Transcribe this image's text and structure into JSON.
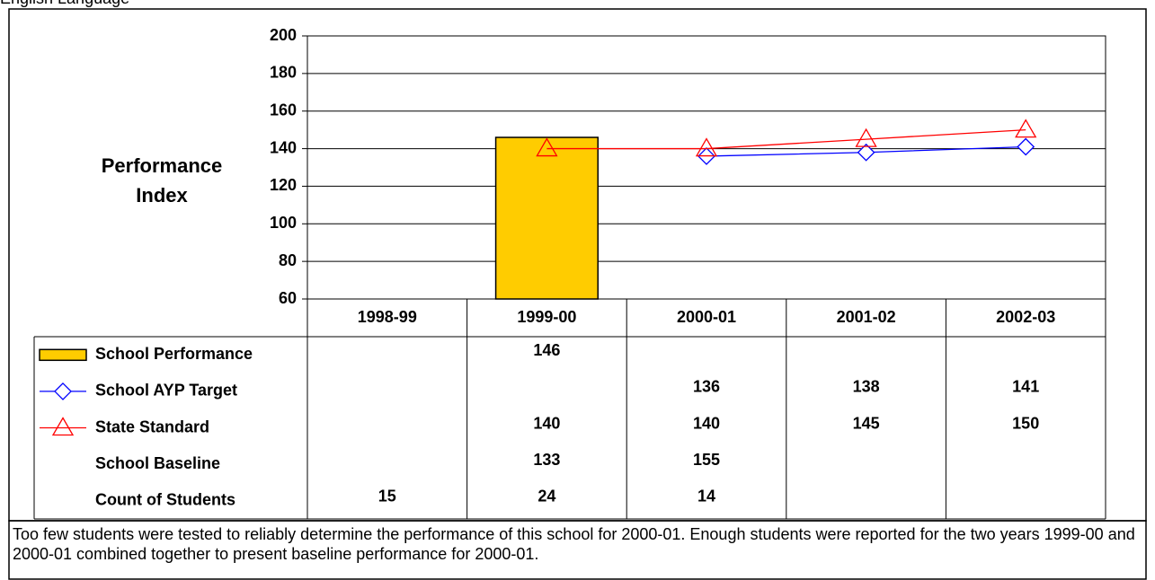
{
  "chart_data": {
    "type": "bar-line-table",
    "title": "English Language",
    "ylabel": "Performance Index",
    "categories": [
      "1998-99",
      "1999-00",
      "2000-01",
      "2001-02",
      "2002-03"
    ],
    "series": [
      {
        "name": "School Performance",
        "marker": "bar",
        "color": "#ffcc00",
        "values": [
          null,
          146,
          null,
          null,
          null
        ]
      },
      {
        "name": "School AYP Target",
        "marker": "diamond",
        "color": "#0000ff",
        "values": [
          null,
          null,
          136,
          138,
          141
        ]
      },
      {
        "name": "State Standard",
        "marker": "triangle",
        "color": "#ff0000",
        "values": [
          null,
          140,
          140,
          145,
          150
        ]
      },
      {
        "name": "School Baseline",
        "values": [
          null,
          133,
          155,
          null,
          null
        ]
      },
      {
        "name": "Count of Students",
        "values": [
          15,
          24,
          14,
          null,
          null
        ]
      }
    ],
    "ylim": [
      60,
      200
    ],
    "yticks": [
      60,
      80,
      100,
      120,
      140,
      160,
      180,
      200
    ],
    "grid": true,
    "note": "Too few students were tested to reliably determine the performance of this school for 2000-01. Enough students were reported for the two years 1999-00 and 2000-01 combined together to present baseline performance for 2000-01."
  }
}
